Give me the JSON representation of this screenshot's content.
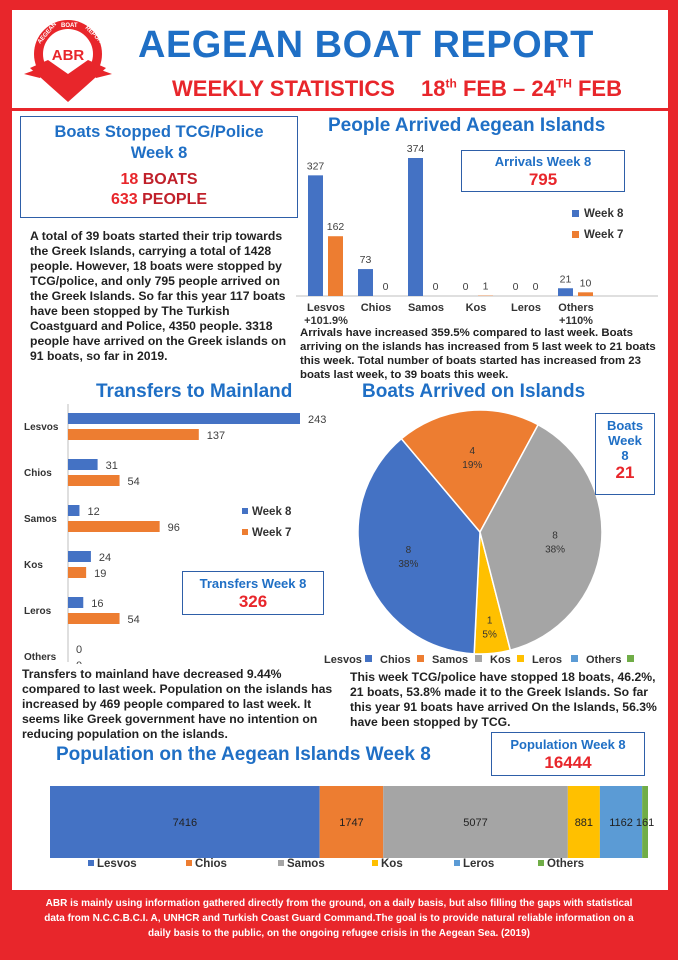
{
  "colors": {
    "blue": "#4472c4",
    "orange": "#ed7d31",
    "gray": "#a5a5a5",
    "yellow": "#ffc000",
    "lightblue": "#5b9bd5",
    "green": "#70ad47",
    "title_blue": "#1f6fc5",
    "red": "#e8262b"
  },
  "header": {
    "logo_text": "ABR",
    "logo_arc_left": "AEGEAN",
    "logo_arc_mid": "BOAT",
    "logo_arc_right": "REPORT",
    "title": "AEGEAN BOAT REPORT",
    "subtitle": "WEEKLY STATISTICS",
    "date_start": "18",
    "date_start_sup": "th",
    "date_mid": " FEB – 24",
    "date_end_sup": "TH",
    "date_end": " FEB"
  },
  "stopped_box": {
    "title_line1": "Boats Stopped TCG/Police",
    "title_line2": "Week 8",
    "boats_number": "18",
    "boats_label": "BOATS",
    "people_number": "633",
    "people_label": "PEOPLE"
  },
  "summary_text": "A total of 39 boats started their trip towards the Greek Islands, carrying a total of 1428 people. However, 18 boats were stopped by TCG/police, and only 795 people arrived on the Greek Islands. So far this year 117 boats have been stopped by The Turkish Coastguard and Police, 4350 people. 3318 people have arrived on the Greek islands on 91 boats, so far in 2019.",
  "arrivals": {
    "section_title": "People Arrived Aegean Islands",
    "box_label": "Arrivals Week 8",
    "box_value": "795",
    "paragraph": "Arrivals have increased 359.5% compared to last week. Boats arriving on the islands has increased from 5 last week to 21 boats this week. Total number of boats started has increased from 23 boats last week, to 39 boats this week."
  },
  "transfers": {
    "section_title": "Transfers to Mainland",
    "box_label": "Transfers Week 8",
    "box_value": "326",
    "paragraph": "Transfers to mainland have decreased 9.44% compared to last week. Population on the islands has increased by 469 people compared to last week. It seems like Greek government have no intention on reducing population on the islands."
  },
  "boats_arrived": {
    "section_title": "Boats Arrived on Islands",
    "box_line1": "Boats",
    "box_line2": "Week",
    "box_line3": "8",
    "box_value": "21",
    "paragraph": "This week TCG/police have stopped 18 boats, 46.2%, 21 boats, 53.8% made it to the Greek Islands. So far this year 91 boats have arrived On the Islands, 56.3% have been stopped by TCG."
  },
  "population": {
    "section_title": "Population on the Aegean Islands Week 8",
    "box_label": "Population Week 8",
    "box_value": "16444"
  },
  "footer_text": "ABR is mainly using information gathered directly from the ground, on a daily basis, but also filling the gaps with statistical data from N.C.C.B.C.I. A, UNHCR and Turkish Coast Guard Command.The goal is to provide natural reliable information on a daily basis to the public, on the ongoing refugee crisis in the Aegean Sea. (2019)",
  "chart_data": [
    {
      "type": "bar",
      "title": "People Arrived Aegean Islands",
      "categories": [
        "Lesvos",
        "Chios",
        "Samos",
        "Kos",
        "Leros",
        "Others"
      ],
      "category_notes": [
        "+101.9%",
        "",
        "",
        "",
        "",
        "+110%"
      ],
      "series": [
        {
          "name": "Week 8",
          "values": [
            327,
            73,
            374,
            0,
            0,
            21
          ]
        },
        {
          "name": "Week 7",
          "values": [
            162,
            0,
            0,
            1,
            0,
            10
          ]
        }
      ],
      "ylim": [
        0,
        374
      ],
      "legend": "right"
    },
    {
      "type": "bar",
      "orientation": "horizontal",
      "title": "Transfers to Mainland",
      "categories": [
        "Lesvos",
        "Chios",
        "Samos",
        "Kos",
        "Leros",
        "Others"
      ],
      "series": [
        {
          "name": "Week 8",
          "values": [
            243,
            31,
            12,
            24,
            16,
            0
          ]
        },
        {
          "name": "Week 7",
          "values": [
            137,
            54,
            96,
            19,
            54,
            0
          ]
        }
      ],
      "xlim": [
        0,
        243
      ],
      "legend": "right"
    },
    {
      "type": "pie",
      "title": "Boats Arrived on Islands",
      "labels": [
        "Lesvos",
        "Chios",
        "Samos",
        "Kos",
        "Leros",
        "Others"
      ],
      "values": [
        8,
        4,
        8,
        1,
        0,
        0
      ],
      "percent_labels": [
        "38%",
        "19%",
        "38%",
        "5%",
        "",
        ""
      ],
      "legend": "bottom"
    },
    {
      "type": "bar",
      "orientation": "horizontal-stacked",
      "title": "Population on the Aegean Islands Week 8",
      "categories": [
        "Lesvos",
        "Chios",
        "Samos",
        "Kos",
        "Leros",
        "Others"
      ],
      "values": [
        7416,
        1747,
        5077,
        881,
        1162,
        161
      ],
      "legend": "bottom"
    }
  ]
}
